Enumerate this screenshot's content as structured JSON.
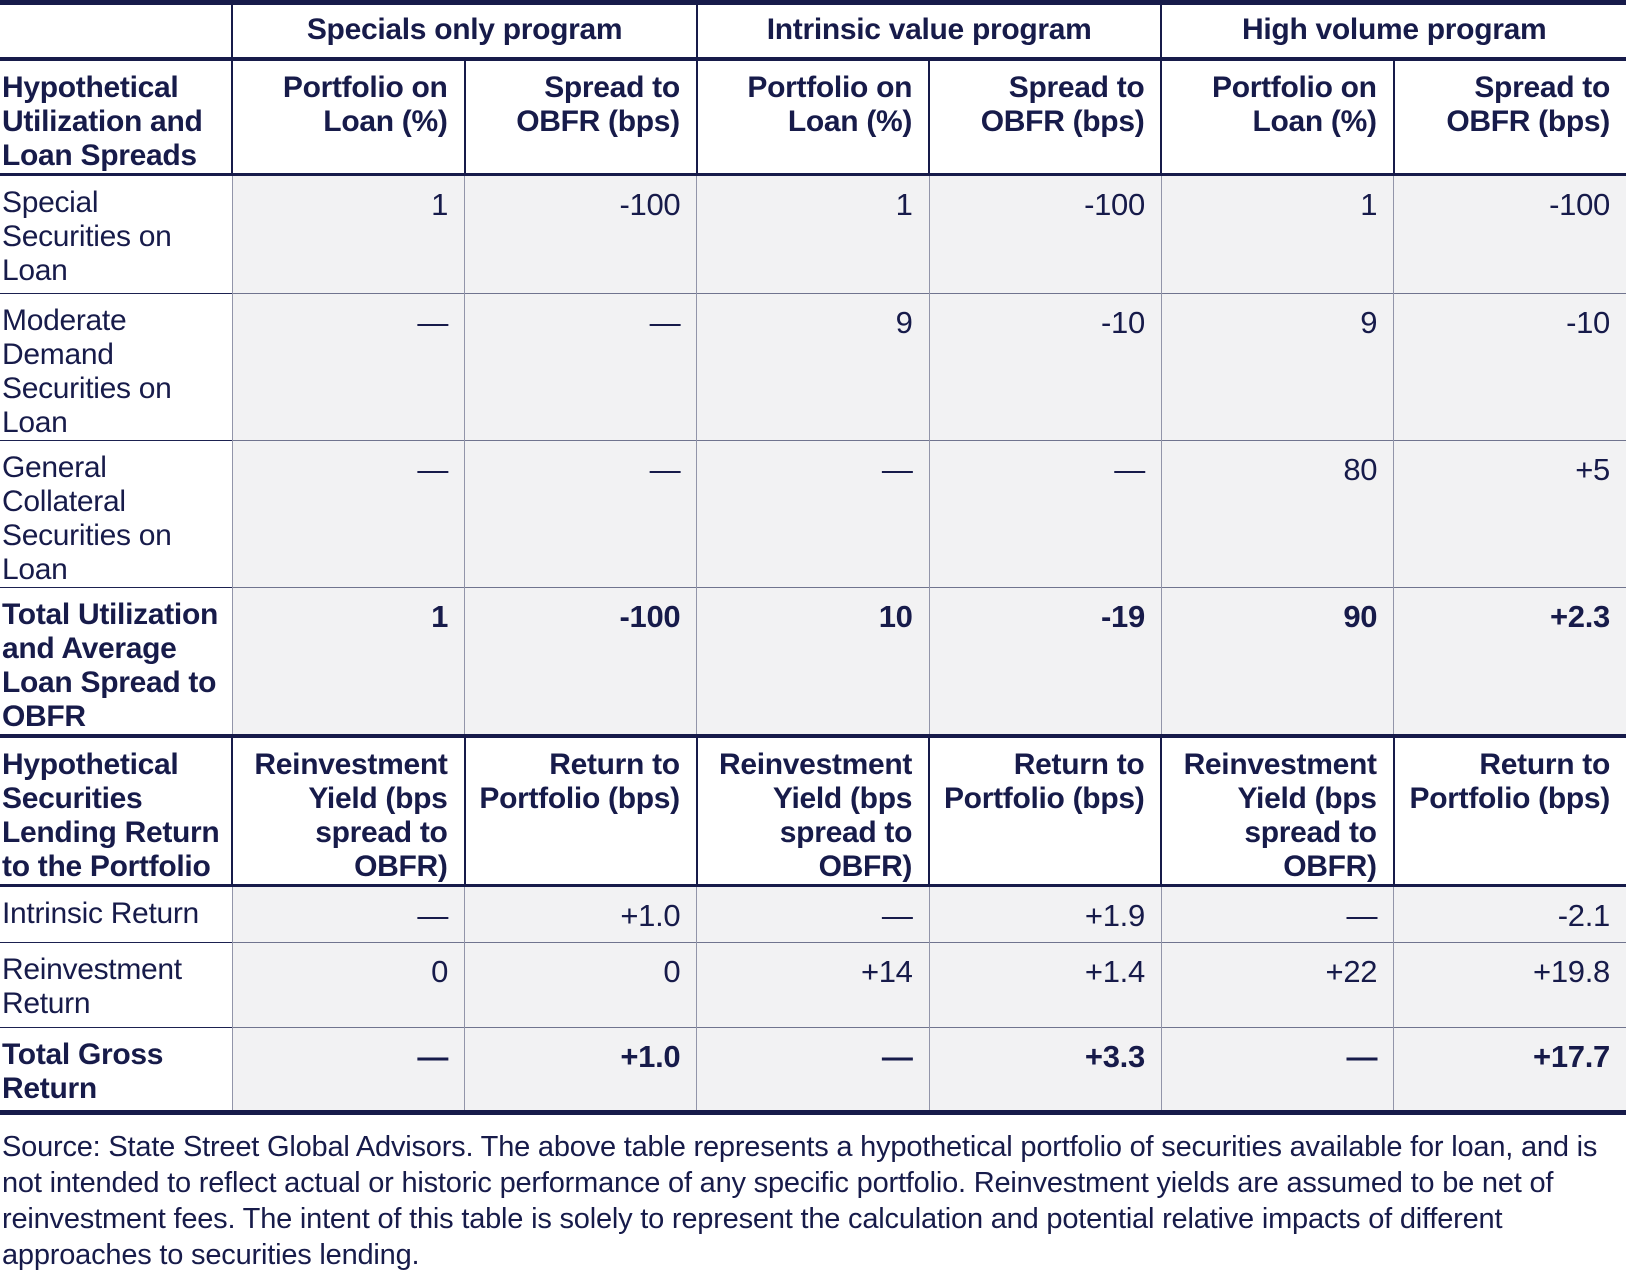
{
  "colors": {
    "navy_text": "#171b4a",
    "data_cell_bg": "#f2f2f3",
    "grid_vertical": "#9295a9",
    "grid_row": "#70748e",
    "header_bg": "#ffffff"
  },
  "chart_data": {
    "type": "table",
    "program_groups": [
      "Specials only program",
      "Intrinsic value program",
      "High volume program"
    ],
    "sections": [
      {
        "row_header": "Hypothetical Utilization and Loan Spreads",
        "column_headers_per_group": [
          "Portfolio on Loan (%)",
          "Spread to OBFR (bps)"
        ],
        "rows": [
          {
            "label": "Special Securities on Loan",
            "emphasis": false,
            "values": [
              "1",
              "-100",
              "1",
              "-100",
              "1",
              "-100"
            ]
          },
          {
            "label": "Moderate Demand Securities on Loan",
            "emphasis": false,
            "values": [
              "—",
              "—",
              "9",
              "-10",
              "9",
              "-10"
            ]
          },
          {
            "label": "General Collateral Securities on Loan",
            "emphasis": false,
            "values": [
              "—",
              "—",
              "—",
              "—",
              "80",
              "+5"
            ]
          },
          {
            "label": "Total Utilization and Average Loan Spread to OBFR",
            "emphasis": true,
            "values": [
              "1",
              "-100",
              "10",
              "-19",
              "90",
              "+2.3"
            ]
          }
        ]
      },
      {
        "row_header": "Hypothetical Securities Lending Return to the Portfolio",
        "column_headers_per_group": [
          "Reinvestment Yield (bps spread to OBFR)",
          "Return to Portfolio (bps)"
        ],
        "rows": [
          {
            "label": "Intrinsic Return",
            "emphasis": false,
            "values": [
              "—",
              "+1.0",
              "—",
              "+1.9",
              "—",
              "-2.1"
            ]
          },
          {
            "label": "Reinvestment Return",
            "emphasis": false,
            "values": [
              "0",
              "0",
              "+14",
              "+1.4",
              "+22",
              "+19.8"
            ]
          },
          {
            "label": "Total Gross Return",
            "emphasis": true,
            "values": [
              "—",
              "+1.0",
              "—",
              "+3.3",
              "—",
              "+17.7"
            ]
          }
        ]
      }
    ],
    "source_note": "Source: State Street Global Advisors. The above table represents a hypothetical portfolio of securities available for loan, and is not intended to reflect actual or historic performance of any specific portfolio. Reinvestment yields are assumed to be net of reinvestment fees. The intent of this table is solely to represent the calculation and potential relative impacts of different approaches to securities lending."
  }
}
